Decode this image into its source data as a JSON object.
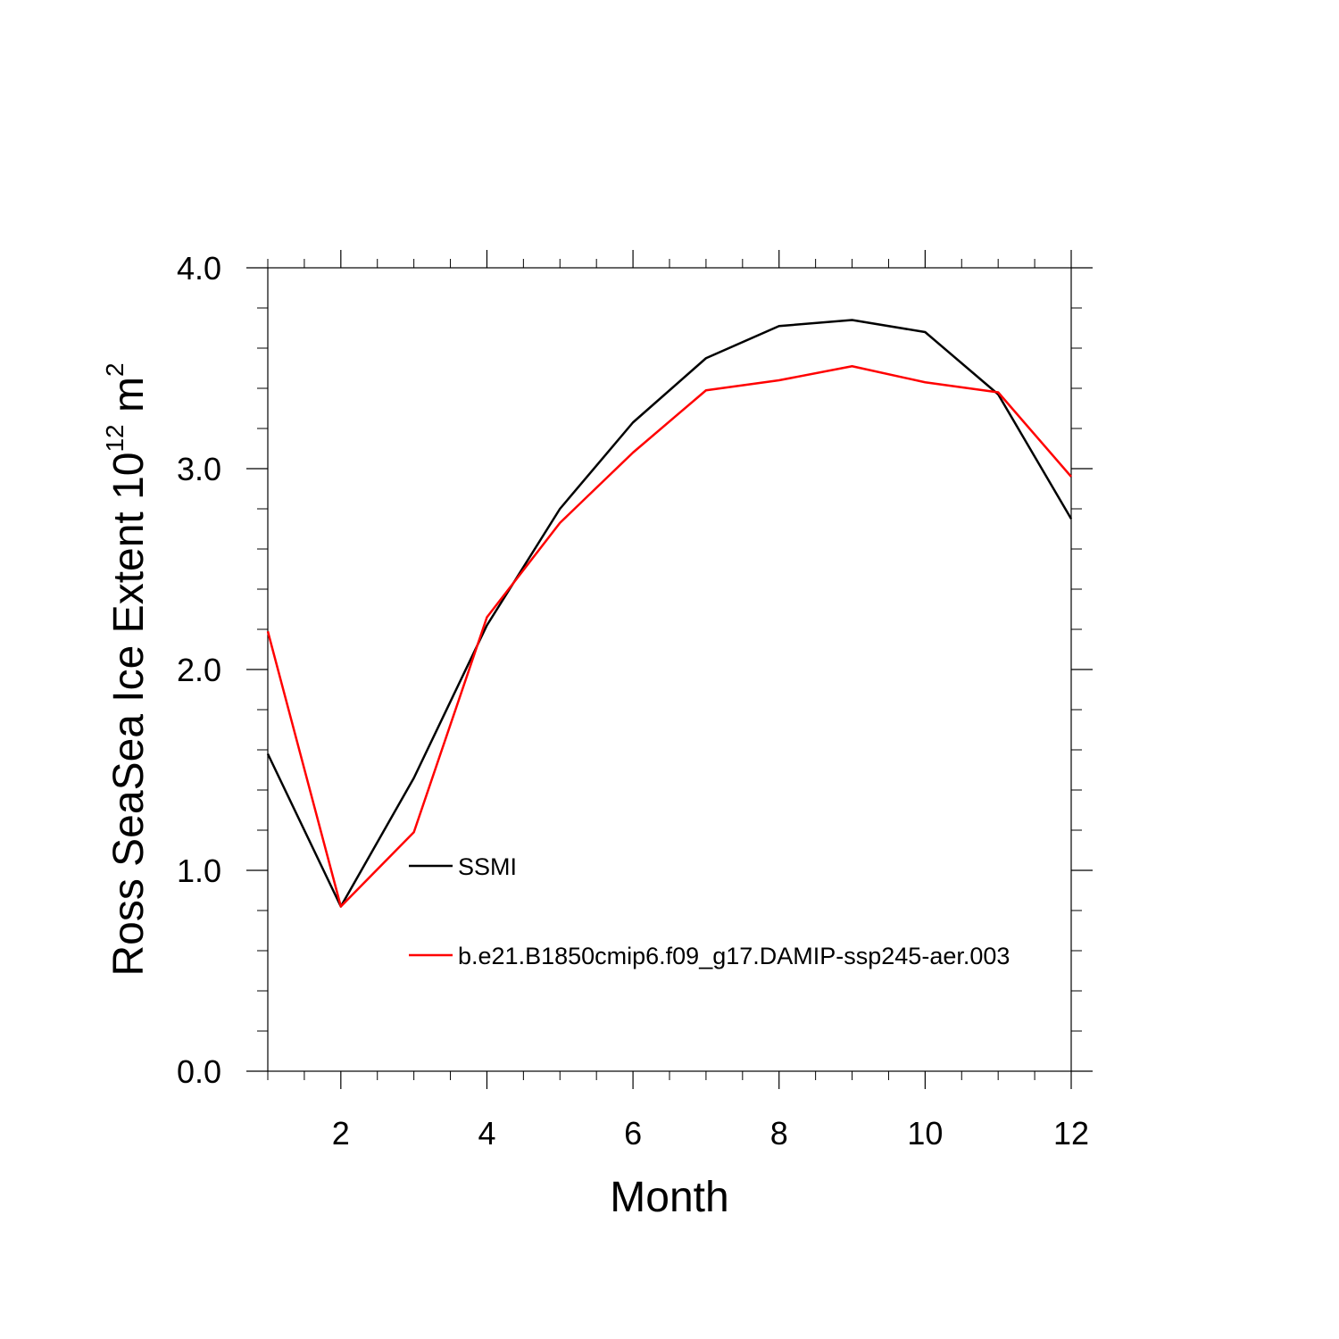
{
  "chart_data": {
    "type": "line",
    "title": "",
    "xlabel": "Month",
    "ylabel": {
      "main": "Ross SeaSea Ice Extent 10",
      "exp": "12",
      "unit": " m",
      "unit_exp": "2"
    },
    "xlim": [
      1,
      12
    ],
    "ylim": [
      0,
      4
    ],
    "xticks": [
      2,
      4,
      6,
      8,
      10,
      12
    ],
    "xtick_labels": [
      "2",
      "4",
      "6",
      "8",
      "10",
      "12"
    ],
    "yticks": [
      0,
      1,
      2,
      3,
      4
    ],
    "ytick_labels": [
      "0.0",
      "1.0",
      "2.0",
      "3.0",
      "4.0"
    ],
    "x": [
      1,
      2,
      3,
      4,
      5,
      6,
      7,
      8,
      9,
      10,
      11,
      12
    ],
    "series": [
      {
        "name": "SSMI",
        "color": "#000000",
        "values": [
          1.58,
          0.82,
          1.46,
          2.22,
          2.8,
          3.23,
          3.55,
          3.71,
          3.74,
          3.68,
          3.37,
          2.75
        ]
      },
      {
        "name": "b.e21.B1850cmip6.f09_g17.DAMIP-ssp245-aer.003",
        "color": "#ff0000",
        "values": [
          2.19,
          0.82,
          1.19,
          2.26,
          2.73,
          3.08,
          3.39,
          3.44,
          3.51,
          3.43,
          3.38,
          2.96
        ]
      }
    ],
    "legend_position": "inside-lower-center",
    "grid": false
  }
}
